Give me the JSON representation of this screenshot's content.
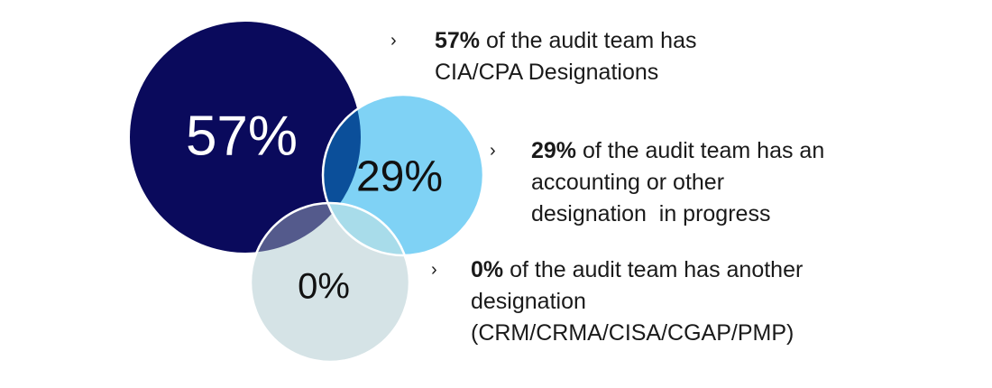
{
  "colors": {
    "circle_57": "#0a0a5c",
    "circle_29": "#7fd2f5",
    "circle_0": "#d5e3e6",
    "overlap_57_29": "#0b4f9a",
    "overlap_57_0": "#545a8c",
    "overlap_29_0": "#a8dcea",
    "circle_text_light": "#ffffff",
    "circle_text_dark": "#111111"
  },
  "circles": [
    {
      "id": "57",
      "label": "57%"
    },
    {
      "id": "29",
      "label": "29%"
    },
    {
      "id": "0",
      "label": "0%"
    }
  ],
  "bullets": [
    {
      "marker": "›",
      "percent": "57%",
      "line1_rest": " of the audit team has",
      "line2": "CIA/CPA Designations"
    },
    {
      "marker": "›",
      "percent": "29%",
      "line1_rest": " of the audit team has an",
      "line2": "accounting or other",
      "line3": "designation  in progress"
    },
    {
      "marker": "›",
      "percent": "0%",
      "line1_rest": " of the audit team has another",
      "line2": "designation",
      "line3": "(CRM/CRMA/CISA/CGAP/PMP)"
    }
  ]
}
